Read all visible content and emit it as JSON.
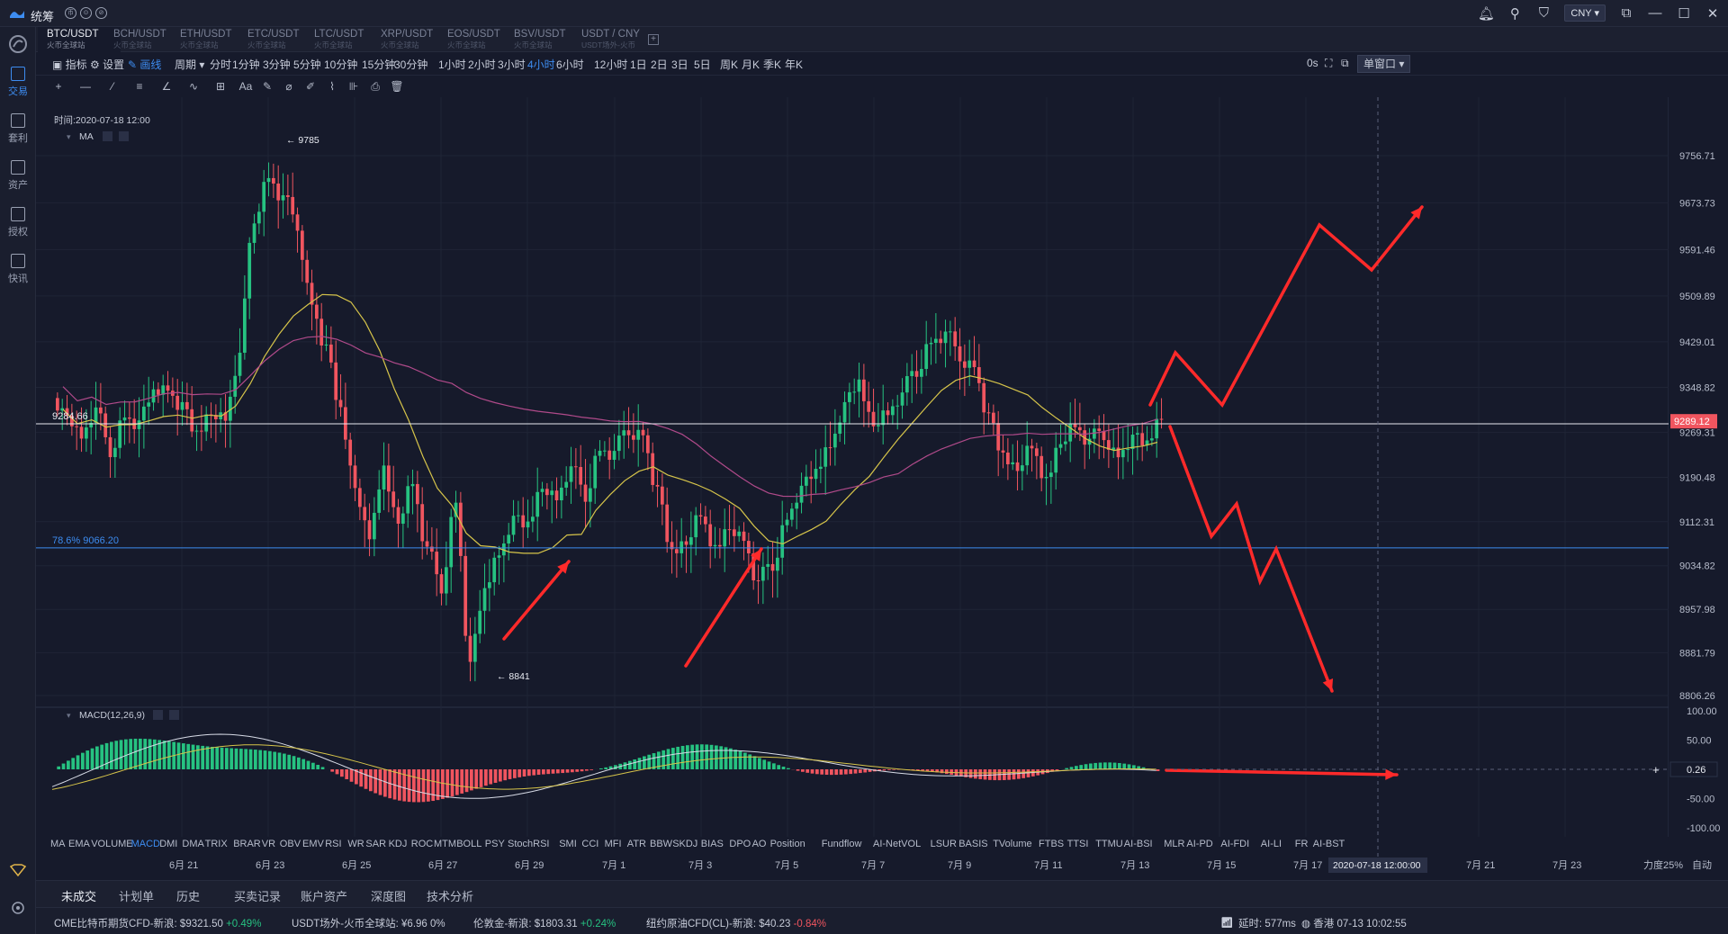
{
  "app": {
    "name": "统筹",
    "badges": [
      "币",
      "⊙",
      "⊘"
    ],
    "currency": "CNY"
  },
  "sidebar": {
    "items": [
      {
        "label": "交易",
        "active": true
      },
      {
        "label": "套利",
        "active": false
      },
      {
        "label": "资产",
        "active": false
      },
      {
        "label": "授权",
        "active": false
      },
      {
        "label": "快讯",
        "active": false
      }
    ]
  },
  "tabs": [
    {
      "symbol": "BTC/USDT",
      "source": "火币全球站",
      "active": true
    },
    {
      "symbol": "BCH/USDT",
      "source": "火币全球站",
      "active": false
    },
    {
      "symbol": "ETH/USDT",
      "source": "火币全球站",
      "active": false
    },
    {
      "symbol": "ETC/USDT",
      "source": "火币全球站",
      "active": false
    },
    {
      "symbol": "LTC/USDT",
      "source": "火币全球站",
      "active": false
    },
    {
      "symbol": "XRP/USDT",
      "source": "火币全球站",
      "active": false
    },
    {
      "symbol": "EOS/USDT",
      "source": "火币全球站",
      "active": false
    },
    {
      "symbol": "BSV/USDT",
      "source": "火币全球站",
      "active": false
    },
    {
      "symbol": "USDT / CNY",
      "source": "USDT场外-火币",
      "active": false
    }
  ],
  "toolbar": {
    "indicator": "指标",
    "settings": "设置",
    "draw": "画线",
    "period_label": "周期",
    "periods": [
      "分时",
      "1分钟",
      "3分钟",
      "5分钟",
      "10分钟",
      "15分钟",
      "30分钟",
      "1小时",
      "2小时",
      "3小时",
      "4小时",
      "6小时",
      "12小时",
      "1日",
      "2日",
      "3日",
      "5日",
      "周K",
      "月K",
      "季K",
      "年K"
    ],
    "active_period": "4小时",
    "countdown": "0s",
    "window_mode": "单窗口"
  },
  "drawing_tools": [
    "+",
    "—",
    "⁄",
    "≡",
    "∠",
    "∿",
    "⊞",
    "Aa",
    "✎",
    "⌀",
    "✐",
    "⌇",
    "⊪",
    "⎙",
    "🗑"
  ],
  "chart_data": {
    "type": "candlestick",
    "time_label": "时间:2020-07-18 12:00",
    "overlay_label": "MA",
    "ylim": [
      8760,
      9800
    ],
    "y_ticks": [
      9756.71,
      9673.73,
      9591.46,
      9509.89,
      9429.01,
      9348.82,
      9269.31,
      9190.48,
      9112.31,
      9034.82,
      8957.98,
      8881.79,
      8806.26
    ],
    "current_price": 9289.12,
    "horizontal_line_price": 9284.66,
    "horizontal_line_label": "9284.66",
    "fib_level_label": "78.6% 9066.20",
    "fib_level_price": 9066.2,
    "high_marker": "9785",
    "high_marker_price": 9785,
    "low_marker": "8841",
    "low_marker_price": 8841,
    "x_labels": [
      "6月 21",
      "6月 23",
      "6月 25",
      "6月 27",
      "6月 29",
      "7月 1",
      "7月 3",
      "7月 5",
      "7月 7",
      "7月 9",
      "7月 11",
      "7月 13",
      "7月 15",
      "7月 17",
      "7月 21",
      "7月 23"
    ],
    "crosshair_label": "2020-07-18 12:00:00",
    "zoom_label": "力度25%",
    "auto_label": "自动",
    "macd": {
      "label": "MACD(12,26,9)",
      "y_ticks": [
        100,
        50,
        0.26,
        -50,
        -100
      ],
      "y_tick_labels": [
        "100.00",
        "50.00",
        "0.26",
        "-50.00",
        "-100.00"
      ],
      "current": "0.26"
    },
    "series_close_path": [
      9310,
      9260,
      9305,
      9240,
      9300,
      9285,
      9330,
      9350,
      9320,
      9260,
      9310,
      9290,
      9400,
      9650,
      9720,
      9680,
      9640,
      9500,
      9420,
      9300,
      9180,
      9080,
      9200,
      9120,
      9180,
      9060,
      9000,
      9150,
      8860,
      8980,
      9060,
      9120,
      9100,
      9180,
      9150,
      9200,
      9160,
      9240,
      9230,
      9280,
      9270,
      9170,
      9050,
      9080,
      9120,
      9060,
      9110,
      9080,
      9000,
      9040,
      9120,
      9170,
      9190,
      9250,
      9320,
      9350,
      9290,
      9300,
      9330,
      9380,
      9430,
      9440,
      9410,
      9390,
      9300,
      9220,
      9210,
      9240,
      9180,
      9260,
      9280,
      9250,
      9270,
      9230,
      9260,
      9240,
      9300
    ]
  },
  "indicator_tabs": [
    "MA",
    "EMA",
    "VOLUME",
    "MACD",
    "DMI",
    "DMA",
    "TRIX",
    "BRAR",
    "VR",
    "OBV",
    "EMV",
    "RSI",
    "WR",
    "SAR",
    "KDJ",
    "ROC",
    "MTM",
    "BOLL",
    "PSY",
    "StochRSI",
    "SMI",
    "CCI",
    "MFI",
    "ATR",
    "BBW",
    "SKDJ",
    "BIAS",
    "DPO",
    "AO",
    "Position",
    "Fundflow",
    "AI-NetVOL",
    "LSUR",
    "BASIS",
    "TVolume",
    "FTBS",
    "TTSI",
    "TTMU",
    "AI-BSI",
    "MLR",
    "AI-PD",
    "AI-FDI",
    "AI-LI",
    "FR",
    "AI-BST"
  ],
  "active_indicator": "MACD",
  "bottom_tabs": [
    "未成交",
    "计划单",
    "历史",
    "买卖记录",
    "账户资产",
    "深度图",
    "技术分析"
  ],
  "active_bottom_tab": "未成交",
  "tickers": [
    {
      "name": "CME比特币期货CFD-新浪:",
      "price": "$9321.50",
      "change": "+0.49%",
      "dir": "up"
    },
    {
      "name": "USDT场外-火币全球站:",
      "price": "¥6.96",
      "change": "0%",
      "dir": "flat"
    },
    {
      "name": "伦敦金-新浪:",
      "price": "$1803.31",
      "change": "+0.24%",
      "dir": "up"
    },
    {
      "name": "纽约原油CFD(CL)-新浪:",
      "price": "$40.23",
      "change": "-0.84%",
      "dir": "down"
    }
  ],
  "status": {
    "latency_label": "延时:",
    "latency": "577ms",
    "clock": "香港 07-13 10:02:55"
  },
  "colors": {
    "up": "#26c281",
    "down": "#f0555f",
    "accent": "#3d8cf0",
    "arrow": "#ff2a2a",
    "ma_yellow": "#d6c44a",
    "ma_purple": "#b04a8a"
  }
}
